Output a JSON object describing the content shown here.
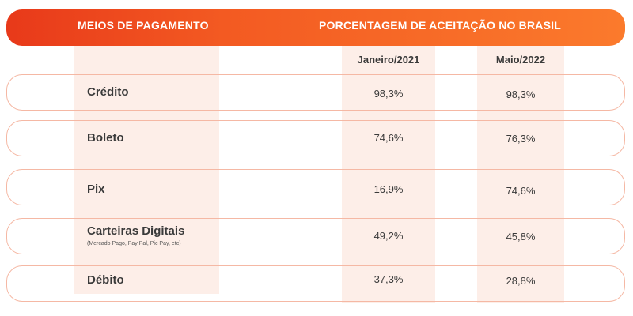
{
  "chart_data": {
    "type": "table",
    "columns": [
      "MEIOS DE PAGAMENTO",
      "PORCENTAGEM DE ACEITAÇÃO NO BRASIL"
    ],
    "subcolumns": [
      "Janeiro/2021",
      "Maio/2022"
    ],
    "rows": [
      {
        "label": "Crédito",
        "note": "",
        "values": [
          "98,3%",
          "98,3%"
        ]
      },
      {
        "label": "Boleto",
        "note": "",
        "values": [
          "74,6%",
          "76,3%"
        ]
      },
      {
        "label": "Pix",
        "note": "",
        "values": [
          "16,9%",
          "74,6%"
        ]
      },
      {
        "label": "Carteiras Digitais",
        "note": "(Mercado Pago, Pay Pal, Pic Pay, etc)",
        "values": [
          "49,2%",
          "45,8%"
        ]
      },
      {
        "label": "Débito",
        "note": "",
        "values": [
          "37,3%",
          "28,8%"
        ]
      }
    ]
  },
  "colors": {
    "header_start": "#e8391a",
    "header_end": "#fb7a2c",
    "column_highlight": "#fdeee8",
    "row_border": "#f5b8a4",
    "text": "#3a3a3a"
  }
}
